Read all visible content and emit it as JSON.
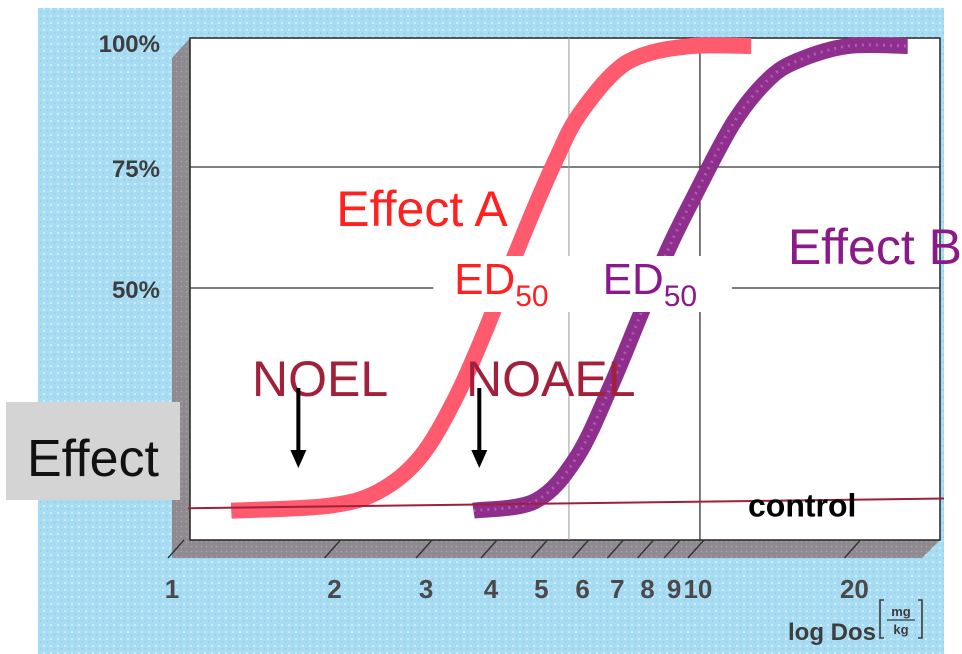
{
  "chart_data": {
    "type": "line",
    "x_axis": {
      "scale": "log",
      "label_main": "log Dos",
      "label_unit_top": "mg",
      "label_unit_bottom": "kg",
      "tick_labels": [
        "1",
        "2",
        "3",
        "4",
        "5",
        "6",
        "7",
        "8",
        "9",
        "10",
        "20"
      ],
      "tick_values": [
        1,
        2,
        3,
        4,
        5,
        6,
        7,
        8,
        9,
        10,
        20
      ],
      "range": [
        1,
        30
      ]
    },
    "y_axis": {
      "label": "Effect",
      "tick_labels": [
        "100%",
        "75%",
        "50%"
      ],
      "tick_values": [
        100,
        75,
        50
      ],
      "range": [
        0,
        100
      ]
    },
    "series": [
      {
        "name": "Effect A",
        "color": "#ff5a6e",
        "x": [
          1.3,
          2.0,
          2.5,
          3.0,
          3.5,
          4.0,
          4.5,
          5.0,
          5.5,
          6.0,
          7.0,
          8.0,
          10.0,
          13.0
        ],
        "y": [
          4,
          5,
          8,
          15,
          27,
          41,
          55,
          67,
          77,
          85,
          94,
          98,
          100,
          100
        ]
      },
      {
        "name": "Effect B",
        "color": "#8e2f8e",
        "x": [
          3.8,
          5.0,
          6.0,
          7.0,
          8.0,
          9.0,
          10.0,
          12.0,
          14.0,
          16.0,
          20.0,
          26.0
        ],
        "y": [
          4,
          6,
          15,
          30,
          45,
          58,
          68,
          84,
          93,
          97,
          100,
          100
        ]
      }
    ],
    "control": {
      "label": "control",
      "y_start": 4.5,
      "y_end": 6.5,
      "color": "#a0203a"
    },
    "annotations": {
      "effect_a": "Effect A",
      "effect_b": "Effect B",
      "ed50": "ED",
      "ed50_sub": "50",
      "noel": "NOEL",
      "noael": "NOAEL",
      "noel_arrow_x": 1.75,
      "noael_arrow_x": 3.9,
      "ed50_a_x": 4.3,
      "ed50_b_x": 8.3
    },
    "grid": true,
    "colors": {
      "background": "#a8dcf3",
      "plot_face": "#ffffff",
      "side_wall": "#8e8a90",
      "floor": "#8e8a90",
      "grid": "#333333",
      "effect_a": "#ff2020",
      "effect_b": "#8a1a8a",
      "noel": "#a3203a",
      "effect_box": "#d4d4d4"
    }
  }
}
